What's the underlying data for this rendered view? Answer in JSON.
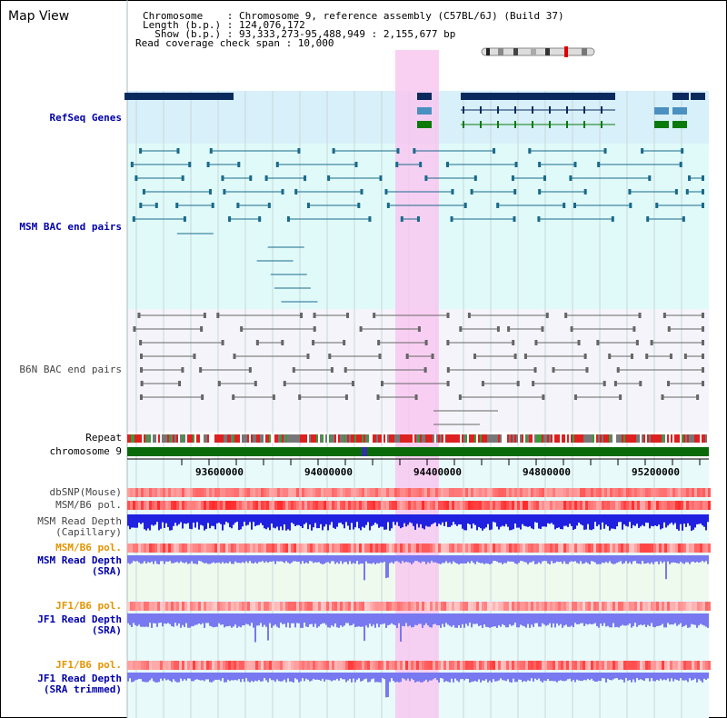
{
  "title": "Map View",
  "header": {
    "chromosome_line": "Chromosome    : Chromosome 9, reference assembly (C57BL/6J) (Build 37)",
    "length_line": "Length (b.p.) : 124,076,172",
    "show_line": "  Show (b.p.) : 93,333,273-95,488,949 : 2,155,677 bp",
    "coverage_line": "Read coverage check span : 10,000"
  },
  "tracks": {
    "refseq": "RefSeq Genes",
    "msm_bac": "MSM BAC end pairs",
    "b6n_bac": "B6N BAC end pairs",
    "repeat": "Repeat",
    "chromosome": "chromosome 9",
    "dbsnp": "dbSNP(Mouse)",
    "msm_b6_pol": "MSM/B6 pol.",
    "msm_depth_cap_1": "MSM Read Depth",
    "msm_depth_cap_2": "(Capillary)",
    "msm_b6_pol_sra": "MSM/B6 pol.",
    "msm_depth_sra_1": "MSM Read Depth",
    "msm_depth_sra_2": "(SRA)",
    "jf1_b6_pol": "JF1/B6 pol.",
    "jf1_depth_sra_1": "JF1 Read Depth",
    "jf1_depth_sra_2": "(SRA)",
    "jf1_b6_pol_trim": "JF1/B6 pol.",
    "jf1_depth_trim_1": "JF1 Read Depth",
    "jf1_depth_trim_2": "(SRA trimmed)"
  },
  "axis": {
    "ticks": [
      "93600000",
      "94000000",
      "94400000",
      "94800000",
      "95200000"
    ]
  },
  "colors": {
    "highlight": "#f8c8f0",
    "refseq_bg": "#d8f0fa",
    "msm_bg": "#e0fafa",
    "b6n_bg": "#f4f4fa",
    "gene_navy": "#0a2a5e",
    "gene_light": "#4a90c0",
    "gene_green": "#0a7a0a",
    "bac_teal": "#1a6a8a",
    "bac_gray": "#666666",
    "depth_blue": "#2020e0",
    "depth_light": "#7878f0"
  }
}
